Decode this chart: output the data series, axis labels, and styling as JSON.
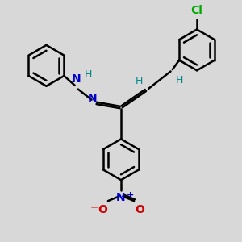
{
  "background_color": "#d8d8d8",
  "bond_color": "#000000",
  "nh_color": "#0000cc",
  "n_color": "#0000cc",
  "cl_color": "#00aa00",
  "h_color": "#008888",
  "no2_n_color": "#0000cc",
  "no2_o_color": "#cc0000",
  "line_width": 1.8,
  "figsize": [
    3.0,
    3.0
  ],
  "dpi": 100,
  "xlim": [
    0,
    10
  ],
  "ylim": [
    0,
    10
  ],
  "ring_r": 0.85,
  "inner_factor": 0.73
}
